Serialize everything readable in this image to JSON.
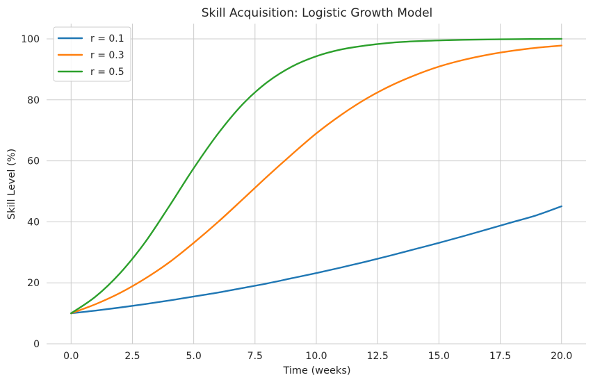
{
  "chart_data": {
    "type": "line",
    "title": "Skill Acquisition: Logistic Growth Model",
    "xlabel": "Time (weeks)",
    "ylabel": "Skill Level (%)",
    "xlim": [
      -1.0,
      21.0
    ],
    "ylim": [
      0,
      105
    ],
    "x_ticks": [
      0.0,
      2.5,
      5.0,
      7.5,
      10.0,
      12.5,
      15.0,
      17.5,
      20.0
    ],
    "x_tick_labels": [
      "0.0",
      "2.5",
      "5.0",
      "7.5",
      "10.0",
      "12.5",
      "15.0",
      "17.5",
      "20.0"
    ],
    "y_ticks": [
      0,
      20,
      40,
      60,
      80,
      100
    ],
    "y_tick_labels": [
      "0",
      "20",
      "40",
      "60",
      "80",
      "100"
    ],
    "grid": true,
    "legend_position": "top-left",
    "x": [
      0,
      1,
      2,
      3,
      4,
      5,
      6,
      7,
      8,
      9,
      10,
      11,
      12,
      13,
      14,
      15,
      16,
      17,
      18,
      19,
      20
    ],
    "series": [
      {
        "name": "r = 0.1",
        "color": "#1f77b4",
        "values": [
          10.0,
          10.9,
          11.9,
          13.0,
          14.2,
          15.5,
          16.8,
          18.3,
          19.8,
          21.5,
          23.2,
          25.0,
          26.9,
          28.9,
          31.0,
          33.1,
          35.3,
          37.6,
          39.9,
          42.2,
          45.1
        ]
      },
      {
        "name": "r = 0.3",
        "color": "#ff7f0e",
        "values": [
          10.0,
          13.0,
          16.7,
          21.3,
          26.7,
          33.1,
          40.0,
          47.4,
          54.9,
          62.1,
          69.0,
          75.0,
          80.2,
          84.5,
          88.0,
          90.9,
          93.1,
          94.8,
          96.1,
          97.1,
          97.8
        ]
      },
      {
        "name": "r = 0.5",
        "color": "#2ca02c",
        "values": [
          10.0,
          15.5,
          23.2,
          33.1,
          45.1,
          57.6,
          69.0,
          78.6,
          85.8,
          90.9,
          94.3,
          96.5,
          97.8,
          98.7,
          99.2,
          99.5,
          99.7,
          99.8,
          99.9,
          99.95,
          100.0
        ]
      }
    ]
  }
}
